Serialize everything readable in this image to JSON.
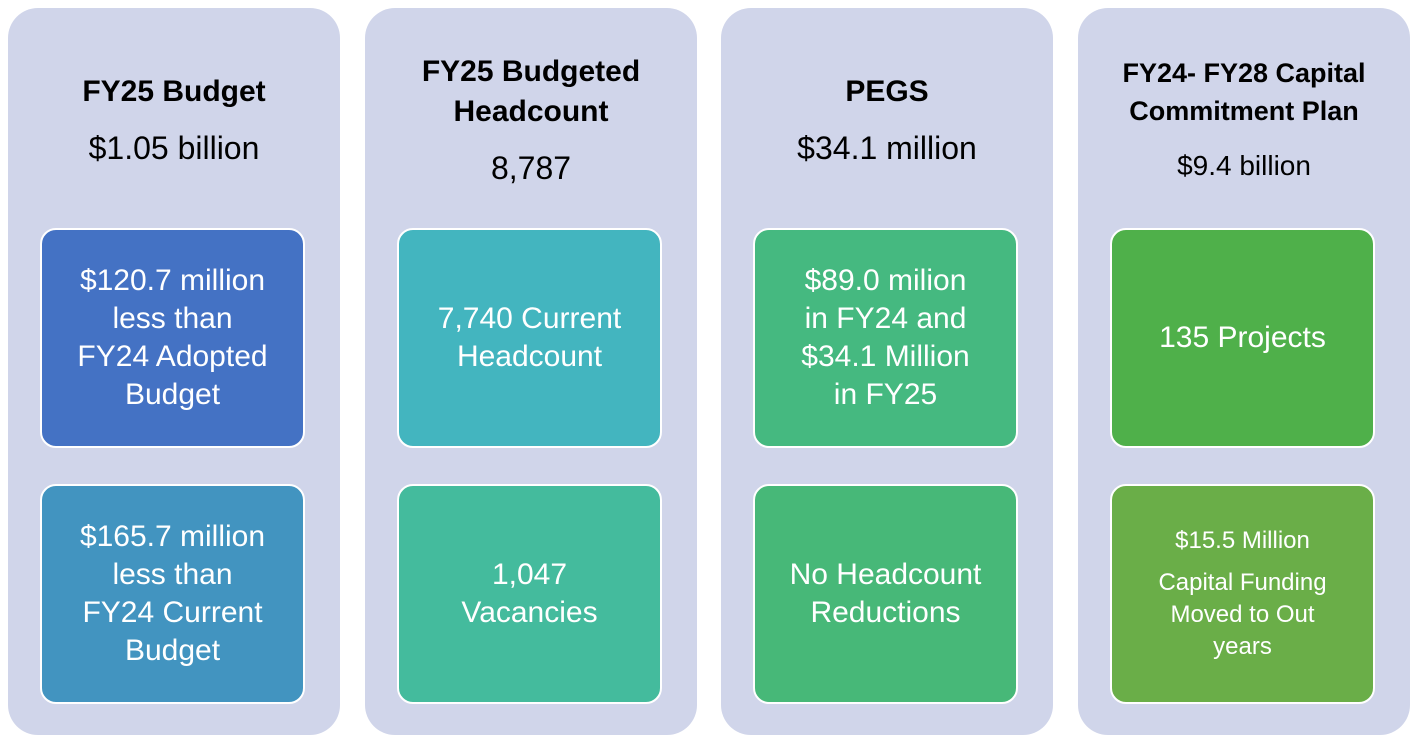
{
  "columns": [
    {
      "title": [
        "FY25 Budget"
      ],
      "value": "$1.05 billion",
      "boxes": [
        {
          "lines": [
            "$120.7 million",
            "less than",
            "FY24 Adopted",
            "Budget"
          ],
          "color": "#4472c4"
        },
        {
          "lines": [
            "$165.7 million",
            "less than",
            "FY24 Current",
            "Budget"
          ],
          "color": "#4294c0"
        }
      ]
    },
    {
      "title": [
        "FY25 Budgeted",
        "Headcount"
      ],
      "value": "8,787",
      "boxes": [
        {
          "lines": [
            "7,740 Current",
            "Headcount"
          ],
          "color": "#43b5bf"
        },
        {
          "lines": [
            "1,047",
            "Vacancies"
          ],
          "color": "#44bb9d"
        }
      ]
    },
    {
      "title": [
        "PEGS"
      ],
      "value": "$34.1 million",
      "boxes": [
        {
          "lines": [
            "$89.0 milion",
            "in FY24 and",
            "$34.1 Million",
            "in FY25"
          ],
          "color": "#45b980"
        },
        {
          "lines": [
            "No Headcount",
            "Reductions"
          ],
          "color": "#47b878"
        }
      ]
    },
    {
      "title": [
        "FY24- FY28 Capital",
        "Commitment Plan"
      ],
      "value": "$9.4 billion",
      "boxes": [
        {
          "lines": [
            "135 Projects"
          ],
          "color": "#4fb04a"
        },
        {
          "lines": [
            "$15.5 Million",
            "Capital Funding",
            "Moved to Out",
            "years"
          ],
          "color": "#6aae48"
        }
      ]
    }
  ]
}
